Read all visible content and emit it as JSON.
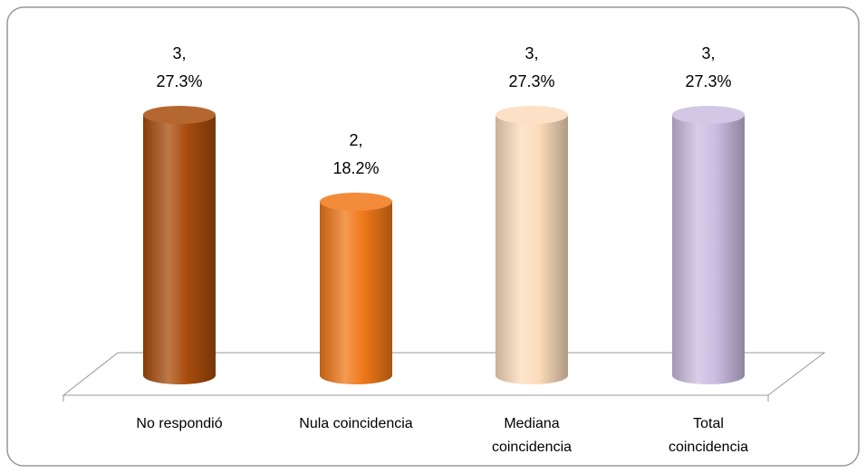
{
  "chart_data": {
    "type": "bar3d",
    "categories": [
      "No respondió",
      "Nula coincidencia",
      "Mediana\ncoincidencia",
      "Total\ncoincidencia"
    ],
    "values": [
      3,
      2,
      3,
      3
    ],
    "percentages": [
      27.3,
      18.2,
      27.3,
      27.3
    ],
    "value_labels": [
      "3,\n27.3%",
      "2,\n18.2%",
      "3,\n27.3%",
      "3,\n27.3%"
    ],
    "colors": [
      "#a84c0c",
      "#f07818",
      "#fcdcbc",
      "#cbbde2"
    ]
  }
}
